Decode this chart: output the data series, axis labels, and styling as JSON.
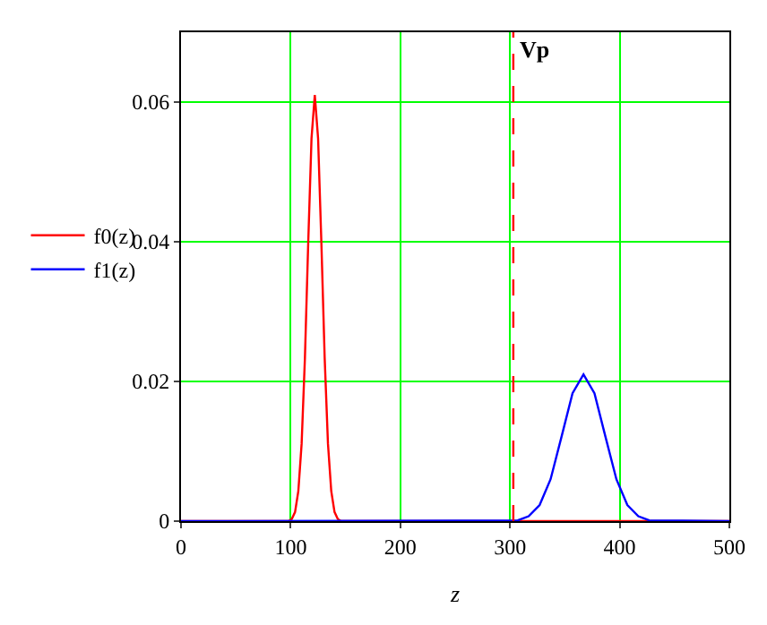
{
  "chart_data": {
    "type": "line",
    "xlabel": "z",
    "legend": "left",
    "grid": true,
    "marker": "none",
    "line_style": "solid",
    "xlim": [
      0,
      500
    ],
    "xticks": [
      0,
      100,
      200,
      300,
      400,
      500
    ],
    "ylim": [
      0,
      0.07
    ],
    "yticks": [
      0,
      0.02,
      0.04,
      0.06
    ],
    "series": [
      {
        "name": "f0(z)",
        "color": "#ff0000",
        "x": [
          0,
          98,
          101,
          104,
          107,
          110,
          113,
          116,
          119,
          122,
          125,
          128,
          131,
          134,
          137,
          140,
          143,
          146,
          500
        ],
        "values": [
          0,
          0,
          0.0003,
          0.0013,
          0.0043,
          0.0111,
          0.0234,
          0.0398,
          0.0548,
          0.061,
          0.0548,
          0.0398,
          0.0234,
          0.0111,
          0.0043,
          0.0013,
          0.0003,
          0,
          0
        ]
      },
      {
        "name": "f1(z)",
        "color": "#0000ff",
        "x": [
          0,
          307,
          317,
          327,
          337,
          347,
          357,
          367,
          377,
          387,
          397,
          407,
          417,
          427,
          500
        ],
        "values": [
          0,
          0.0001,
          0.0007,
          0.0023,
          0.006,
          0.0121,
          0.0183,
          0.021,
          0.0183,
          0.0121,
          0.006,
          0.0023,
          0.0007,
          0.0001,
          0
        ]
      }
    ],
    "ref_lines": [
      {
        "axis": "x",
        "value": 303,
        "label": "Vp",
        "color": "#ff0000",
        "line_style": "dashed"
      }
    ]
  }
}
